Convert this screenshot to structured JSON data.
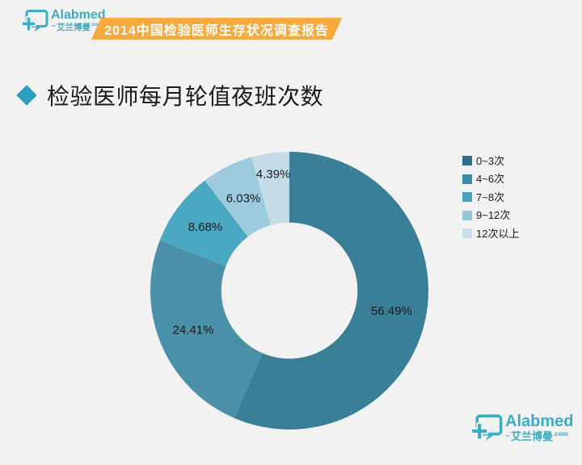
{
  "brand": {
    "name": "Alabmed",
    "cn": "艾兰博曼",
    "tld": ".com",
    "tm": "™",
    "color": "#3BACC4"
  },
  "header": {
    "banner_text": "2014中国检验医师生存状况调查报告",
    "banner_color": "#F5A93E",
    "banner_text_color": "#FFFFFF"
  },
  "page": {
    "background": "#F2F2F2",
    "title": "检验医师每月轮值夜班次数",
    "title_bullet_color": "#2C9FBE"
  },
  "chart_data": {
    "type": "pie",
    "subtype": "donut",
    "title": "检验医师每月轮值夜班次数",
    "categories": [
      "0~3次",
      "4~6次",
      "7~8次",
      "9~12次",
      "12次以上"
    ],
    "values": [
      56.49,
      24.41,
      8.68,
      6.03,
      4.39
    ],
    "labels": [
      "56.49%",
      "24.41%",
      "8.68%",
      "6.03%",
      "4.39%"
    ],
    "unit": "%",
    "start_angle": "top",
    "direction": "clockwise",
    "inner_radius_ratio": 0.49,
    "colors": [
      "#3A7F98",
      "#4A90A8",
      "#4AA8C2",
      "#9DCBDE",
      "#C4DCE6"
    ],
    "legend_colors": [
      "#2F6F8C",
      "#3D8BA8",
      "#45A3C0",
      "#97C6DA",
      "#C9E0EA"
    ],
    "legend_position": "right",
    "label_color": "#1A1A1A"
  }
}
